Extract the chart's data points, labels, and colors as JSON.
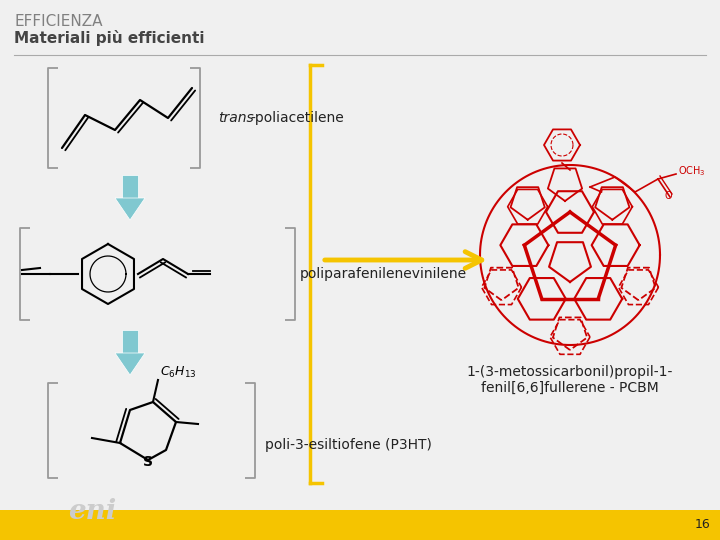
{
  "title_line1": "EFFICIENZA",
  "title_line2": "Materiali più efficienti",
  "title_color": "#808080",
  "bg_color": "#f0f0f0",
  "footer_color": "#f5c400",
  "footer_text": "16",
  "separator_color": "#aaaaaa",
  "label1_italic": "trans",
  "label1_rest": "-poliacetilene",
  "label2": "poliparafenilenevinilene",
  "label3": "poli-3-esiltiofene (P3HT)",
  "label4_line1": "1-(3-metossicarbonil)propil-1-",
  "label4_line2": "fenil[6,6]fullerene - PCBM",
  "bracket_color": "#999999",
  "arrow_color": "#80c8d0",
  "yellow_color": "#f5c400",
  "molecule_color": "#cc0000",
  "text_color": "#222222"
}
